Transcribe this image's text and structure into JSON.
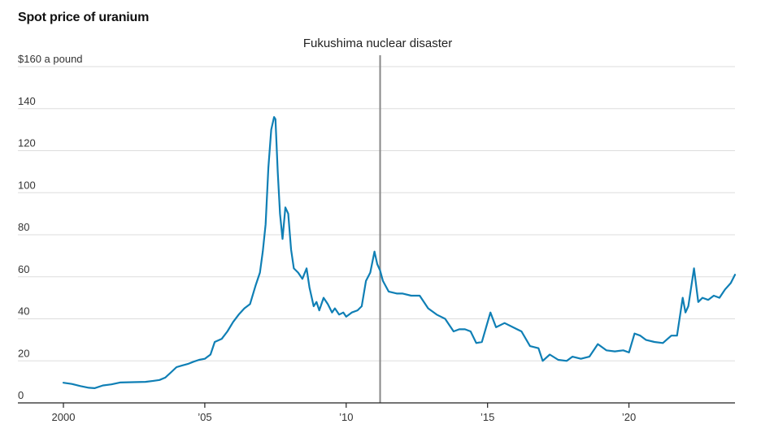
{
  "chart_data": {
    "type": "line",
    "title": "Spot price of uranium",
    "ylabel": "",
    "xlabel": "",
    "xlim": [
      2000.0,
      2023.75
    ],
    "ylim": [
      0,
      160
    ],
    "y_ticks": [
      {
        "value": 160,
        "label": "$160 a pound"
      },
      {
        "value": 140,
        "label": "140"
      },
      {
        "value": 120,
        "label": "120"
      },
      {
        "value": 100,
        "label": "100"
      },
      {
        "value": 80,
        "label": "80"
      },
      {
        "value": 60,
        "label": "60"
      },
      {
        "value": 40,
        "label": "40"
      },
      {
        "value": 20,
        "label": "20"
      },
      {
        "value": 0,
        "label": "0"
      }
    ],
    "x_ticks": [
      {
        "value": 2000,
        "label": "2000"
      },
      {
        "value": 2005,
        "label": "’05"
      },
      {
        "value": 2010,
        "label": "’10"
      },
      {
        "value": 2015,
        "label": "’15"
      },
      {
        "value": 2020,
        "label": "’20"
      }
    ],
    "grid": true,
    "colors": {
      "line": "#0f7fb5",
      "grid": "#dddddd",
      "annotation": "#888888",
      "axis": "#222222"
    },
    "annotations": [
      {
        "x": 2011.2,
        "label": "Fukushima nuclear disaster"
      }
    ],
    "series": [
      {
        "x": [
          2000.0,
          2000.3,
          2000.6,
          2000.9,
          2001.1,
          2001.4,
          2001.7,
          2002.0,
          2002.3,
          2002.6,
          2002.9,
          2003.2,
          2003.4,
          2003.6,
          2003.8,
          2004.0,
          2004.2,
          2004.4,
          2004.6,
          2004.8,
          2005.0,
          2005.2,
          2005.35,
          2005.6,
          2005.8,
          2006.0,
          2006.2,
          2006.4,
          2006.6,
          2006.8,
          2006.95,
          2007.05,
          2007.15,
          2007.25,
          2007.35,
          2007.45,
          2007.5,
          2007.58,
          2007.66,
          2007.75,
          2007.85,
          2007.95,
          2008.05,
          2008.15,
          2008.3,
          2008.45,
          2008.6,
          2008.7,
          2008.85,
          2008.95,
          2009.05,
          2009.2,
          2009.35,
          2009.5,
          2009.6,
          2009.75,
          2009.9,
          2010.0,
          2010.2,
          2010.4,
          2010.55,
          2010.7,
          2010.85,
          2011.0,
          2011.1,
          2011.2,
          2011.3,
          2011.5,
          2011.8,
          2012.0,
          2012.3,
          2012.6,
          2012.9,
          2013.2,
          2013.5,
          2013.8,
          2014.0,
          2014.2,
          2014.4,
          2014.6,
          2014.8,
          2014.95,
          2015.1,
          2015.3,
          2015.6,
          2015.9,
          2016.2,
          2016.5,
          2016.8,
          2016.95,
          2017.2,
          2017.5,
          2017.8,
          2018.0,
          2018.3,
          2018.6,
          2018.9,
          2019.2,
          2019.5,
          2019.8,
          2020.0,
          2020.2,
          2020.4,
          2020.6,
          2020.9,
          2021.2,
          2021.5,
          2021.7,
          2021.9,
          2022.0,
          2022.1,
          2022.2,
          2022.3,
          2022.45,
          2022.6,
          2022.8,
          2023.0,
          2023.2,
          2023.4,
          2023.6,
          2023.75
        ],
        "values": [
          9.6,
          9.0,
          8.0,
          7.2,
          7.0,
          8.3,
          8.8,
          9.7,
          9.8,
          9.9,
          10.0,
          10.5,
          10.9,
          12.0,
          14.5,
          17.0,
          17.8,
          18.5,
          19.6,
          20.5,
          21.0,
          23.0,
          29.0,
          30.5,
          34.0,
          38.5,
          42.0,
          45.0,
          47.0,
          56.0,
          62.0,
          72.0,
          85.0,
          112.0,
          130.0,
          136.0,
          135.0,
          110.0,
          90.0,
          78.0,
          93.0,
          90.0,
          73.0,
          64.0,
          62.0,
          59.0,
          64.0,
          55.0,
          46.0,
          48.0,
          44.0,
          50.0,
          47.0,
          43.0,
          45.0,
          42.0,
          43.0,
          41.0,
          43.0,
          44.0,
          46.0,
          58.0,
          62.0,
          72.0,
          66.0,
          63.0,
          58.0,
          53.0,
          52.0,
          52.0,
          51.0,
          51.0,
          45.0,
          42.0,
          40.0,
          34.0,
          35.0,
          35.0,
          34.0,
          28.5,
          29.0,
          36.0,
          43.0,
          36.0,
          38.0,
          36.0,
          34.0,
          27.0,
          26.0,
          20.0,
          23.0,
          20.5,
          20.0,
          22.0,
          21.0,
          22.0,
          28.0,
          25.0,
          24.5,
          25.0,
          24.0,
          33.0,
          32.0,
          30.0,
          29.0,
          28.5,
          32.0,
          32.0,
          50.0,
          43.0,
          46.0,
          55.0,
          64.0,
          48.0,
          50.0,
          49.0,
          51.0,
          50.0,
          54.0,
          57.0,
          61.0
        ]
      }
    ]
  }
}
